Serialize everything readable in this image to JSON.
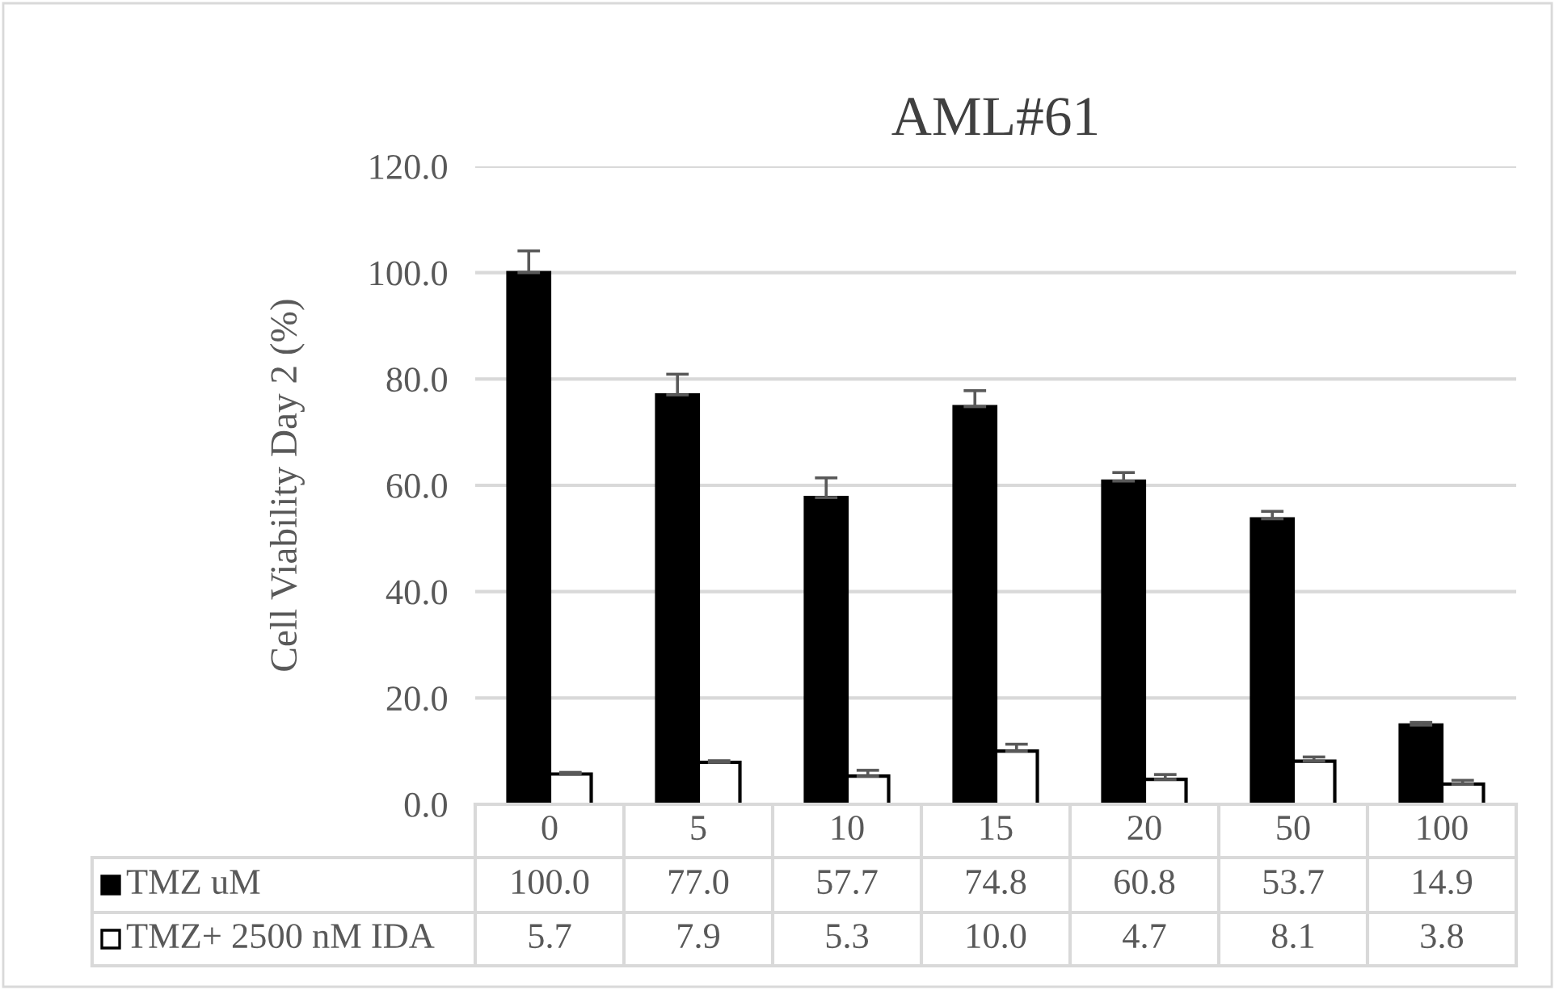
{
  "chart_data": {
    "type": "bar",
    "title": "AML#61",
    "ylabel": "Cell Viability Day 2 (%)",
    "categories": [
      "0",
      "5",
      "10",
      "15",
      "20",
      "50",
      "100"
    ],
    "series": [
      {
        "name": "TMZ uM",
        "color": "#000000",
        "values": [
          100.0,
          77.0,
          57.7,
          74.8,
          60.8,
          53.7,
          14.9
        ],
        "value_labels": [
          "100.0",
          "77.0",
          "57.7",
          "74.8",
          "60.8",
          "53.7",
          "14.9"
        ],
        "errors": [
          [
            100.0,
            104.1
          ],
          [
            77.0,
            80.9
          ],
          [
            57.7,
            61.4
          ],
          [
            74.8,
            77.8
          ],
          [
            60.8,
            62.4
          ],
          [
            53.7,
            55.1
          ],
          [
            14.9,
            15.4
          ]
        ]
      },
      {
        "name": "TMZ+ 2500 nM IDA",
        "color": "#ffffff",
        "values": [
          5.7,
          7.9,
          5.3,
          10.0,
          4.7,
          8.1,
          3.8
        ],
        "value_labels": [
          "5.7",
          "7.9",
          "5.3",
          "10.0",
          "4.7",
          "8.1",
          "3.8"
        ],
        "errors": [
          [
            5.7,
            6.0
          ],
          [
            7.9,
            8.2
          ],
          [
            5.3,
            6.4
          ],
          [
            10.0,
            11.3
          ],
          [
            4.7,
            5.6
          ],
          [
            8.1,
            8.9
          ],
          [
            3.8,
            4.5
          ]
        ]
      }
    ],
    "ylim": [
      0,
      120
    ],
    "yticks": [
      {
        "value": 0,
        "label": "0.0"
      },
      {
        "value": 20,
        "label": "20.0"
      },
      {
        "value": 40,
        "label": "40.0"
      },
      {
        "value": 60,
        "label": "60.0"
      },
      {
        "value": 80,
        "label": "80.0"
      },
      {
        "value": 100,
        "label": "100.0"
      },
      {
        "value": 120,
        "label": "120.0"
      }
    ],
    "grid": "y",
    "legend": "bottom"
  }
}
